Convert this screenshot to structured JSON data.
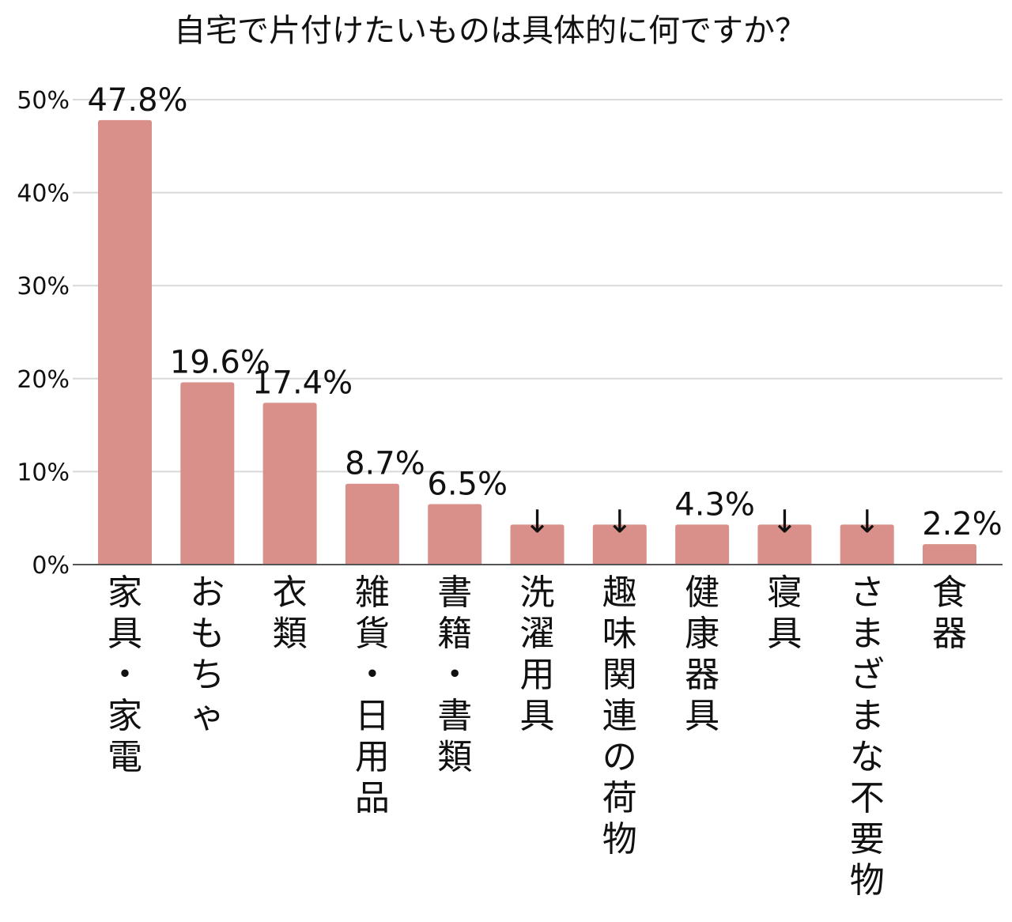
{
  "chart_data": {
    "type": "bar",
    "title": "自宅で片付けたいものは具体的に何ですか？",
    "xlabel": "",
    "ylabel": "",
    "ylim": [
      0,
      50
    ],
    "yticks": [
      "0%",
      "10%",
      "20%",
      "30%",
      "40%",
      "50%"
    ],
    "grid": true,
    "bar_color": "#d9908b",
    "categories": [
      "家具・家電",
      "おもちゃ",
      "衣類",
      "雑貨・日用品",
      "書籍・書類",
      "洗濯用具",
      "趣味関連の荷物",
      "健康器具",
      "寝具",
      "さまざまな不要物",
      "食器"
    ],
    "values": [
      47.8,
      19.6,
      17.4,
      8.7,
      6.5,
      4.3,
      4.3,
      4.3,
      4.3,
      4.3,
      2.2
    ],
    "data_labels": [
      "47.8%",
      "19.6%",
      "17.4%",
      "8.7%",
      "6.5%",
      "↓",
      "↓",
      "4.3%",
      "↓",
      "↓",
      "2.2%"
    ]
  }
}
